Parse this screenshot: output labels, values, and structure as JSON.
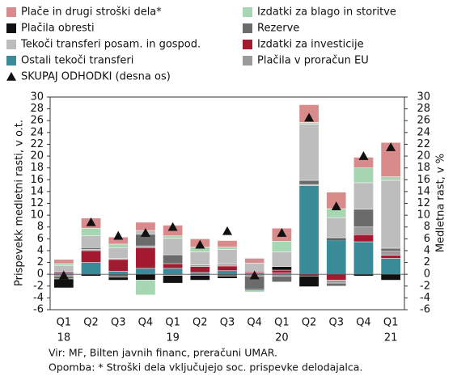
{
  "chart_data": {
    "type": "bar",
    "stacked": true,
    "y_axis_label": "Prispevekk medletni rasti, v o.t.",
    "y2_axis_label": "Medletna rast, v %",
    "categories": [
      "Q1",
      "Q2",
      "Q3",
      "Q4",
      "Q1",
      "Q2",
      "Q3",
      "Q4",
      "Q1",
      "Q2",
      "Q3",
      "Q4",
      "Q1"
    ],
    "years": [
      "18",
      null,
      null,
      null,
      "19",
      null,
      null,
      null,
      "20",
      null,
      null,
      null,
      "21"
    ],
    "ylim": [
      -6,
      30
    ],
    "yticks": [
      -6,
      -4,
      -2,
      0,
      2,
      4,
      6,
      8,
      10,
      12,
      14,
      16,
      18,
      20,
      22,
      24,
      26,
      28,
      30
    ],
    "y2lim": [
      -6,
      30
    ],
    "y2ticks": [
      -6,
      -4,
      -2,
      0,
      2,
      4,
      6,
      8,
      10,
      12,
      14,
      16,
      18,
      20,
      22,
      24,
      26,
      28,
      30
    ],
    "series": [
      {
        "name": "Plače in drugi stroški dela*",
        "color": "#d98b8b",
        "values": [
          0.7,
          1.7,
          1.2,
          1.4,
          1.8,
          1.4,
          1.1,
          0.8,
          2.2,
          3.0,
          2.8,
          1.8,
          5.8
        ]
      },
      {
        "name": "Izdatki za blago in storitve",
        "color": "#a6d7b2",
        "values": [
          0.3,
          1.3,
          0.6,
          -2.5,
          0.4,
          0.8,
          0.4,
          -0.3,
          1.8,
          0.3,
          1.5,
          2.5,
          0.6
        ]
      },
      {
        "name": "Plačila obresti",
        "color": "#111111",
        "values": [
          -1.5,
          -0.3,
          -0.5,
          -1.0,
          -1.3,
          -0.8,
          -0.4,
          -0.2,
          0.6,
          -1.8,
          0.3,
          -0.3,
          -1.0
        ]
      },
      {
        "name": "Rezerve",
        "color": "#6b6b6b",
        "values": [
          -0.5,
          0.3,
          -0.5,
          2.0,
          1.5,
          -0.2,
          -0.3,
          -2.2,
          -1.0,
          0.7,
          -0.5,
          3.0,
          0.5
        ]
      },
      {
        "name": "Tekoči transferi posam. in gospod.",
        "color": "#bdbdbd",
        "values": [
          1.0,
          2.0,
          1.8,
          0.6,
          2.8,
          2.2,
          2.5,
          1.5,
          2.5,
          9.5,
          3.5,
          4.5,
          11.5
        ]
      },
      {
        "name": "Izdatki za investicije",
        "color": "#a3192f",
        "values": [
          0.2,
          2.0,
          2.0,
          3.5,
          0.8,
          1.0,
          0.8,
          0.2,
          0.5,
          -0.3,
          -1.0,
          1.2,
          0.5
        ]
      },
      {
        "name": "Ostali tekoči transferi",
        "color": "#3a8b98",
        "values": [
          0.3,
          2.0,
          0.5,
          1.0,
          1.0,
          0.3,
          0.6,
          0.2,
          0.2,
          15.0,
          5.8,
          5.5,
          2.7
        ]
      },
      {
        "name": "Plačila v proračun EU",
        "color": "#9a9a9a",
        "values": [
          -0.3,
          0.2,
          0.2,
          0.3,
          -0.2,
          0.3,
          0.3,
          -0.3,
          -0.3,
          0.2,
          -0.5,
          1.3,
          0.7
        ]
      }
    ],
    "total": {
      "name": "SKUPAJ ODHODKI (desna os)",
      "type": "scatter",
      "marker": "triangle",
      "color": "#111111",
      "axis": "y2",
      "values": [
        -0.2,
        8.8,
        6.5,
        7.0,
        8.0,
        5.0,
        7.3,
        -0.2,
        7.0,
        26.5,
        11.5,
        20.0,
        21.5
      ]
    },
    "notes": [
      "Vir: MF, Bilten javnih financ, preračuni UMAR.",
      "Opomba: * Stroški dela vključujejo soc. prispevke delodajalca."
    ]
  }
}
